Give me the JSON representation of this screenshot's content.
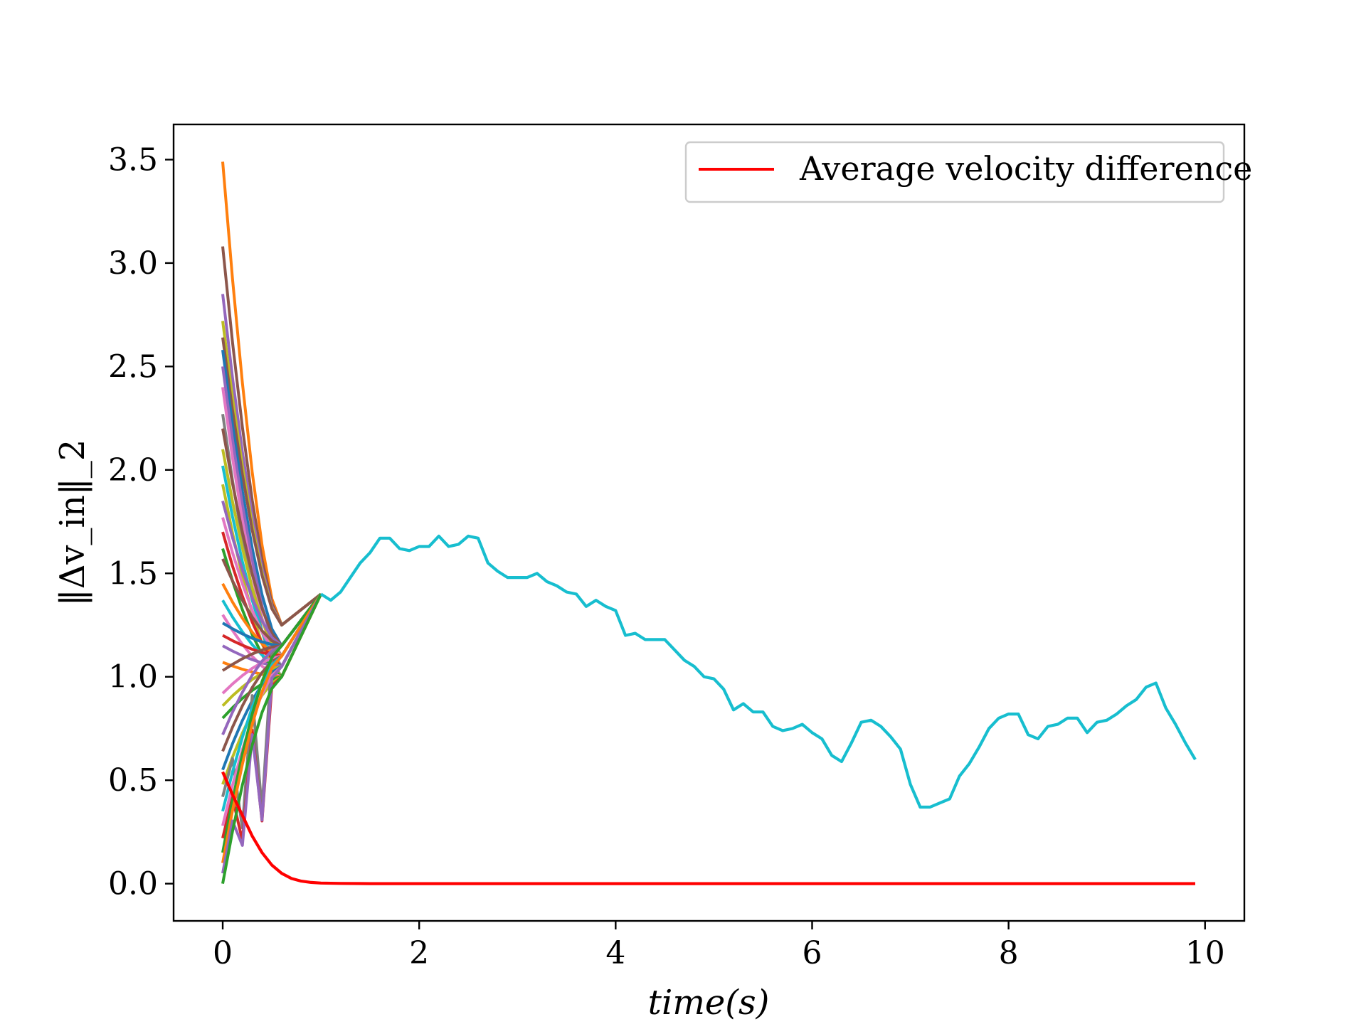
{
  "chart_data": {
    "type": "line",
    "title": "",
    "xlabel": "time(s)",
    "ylabel": "‖Δv_in‖_2",
    "xlim": [
      -0.5,
      10.4
    ],
    "ylim": [
      -0.18,
      3.67
    ],
    "xticks": [
      0,
      2,
      4,
      6,
      8,
      10
    ],
    "yticks": [
      0.0,
      0.5,
      1.0,
      1.5,
      2.0,
      2.5,
      3.0,
      3.5
    ],
    "xtick_labels": [
      "0",
      "2",
      "4",
      "6",
      "8",
      "10"
    ],
    "ytick_labels": [
      "0.0",
      "0.5",
      "1.0",
      "1.5",
      "2.0",
      "2.5",
      "3.0",
      "3.5"
    ],
    "grid": false,
    "legend": {
      "position": "upper right",
      "entries": [
        "Average velocity difference"
      ]
    },
    "converged": {
      "color": "#17becf",
      "x": [
        1.0,
        1.1,
        1.2,
        1.3,
        1.4,
        1.5,
        1.6,
        1.7,
        1.8,
        1.9,
        2.0,
        2.1,
        2.2,
        2.3,
        2.4,
        2.5,
        2.6,
        2.7,
        2.8,
        2.9,
        3.0,
        3.1,
        3.2,
        3.3,
        3.4,
        3.5,
        3.6,
        3.7,
        3.8,
        3.9,
        4.0,
        4.1,
        4.2,
        4.3,
        4.4,
        4.5,
        4.6,
        4.7,
        4.8,
        4.9,
        5.0,
        5.1,
        5.2,
        5.3,
        5.4,
        5.5,
        5.6,
        5.7,
        5.8,
        5.9,
        6.0,
        6.1,
        6.2,
        6.3,
        6.4,
        6.5,
        6.6,
        6.7,
        6.8,
        6.9,
        7.0,
        7.1,
        7.2,
        7.3,
        7.4,
        7.5,
        7.6,
        7.7,
        7.8,
        7.9,
        8.0,
        8.1,
        8.2,
        8.3,
        8.4,
        8.5,
        8.6,
        8.7,
        8.8,
        8.9,
        9.0,
        9.1,
        9.2,
        9.3,
        9.4,
        9.5,
        9.6,
        9.7,
        9.8,
        9.9
      ],
      "y": [
        1.4,
        1.37,
        1.41,
        1.48,
        1.55,
        1.6,
        1.67,
        1.67,
        1.62,
        1.61,
        1.63,
        1.63,
        1.68,
        1.63,
        1.64,
        1.68,
        1.67,
        1.55,
        1.51,
        1.48,
        1.48,
        1.48,
        1.5,
        1.46,
        1.44,
        1.41,
        1.4,
        1.34,
        1.37,
        1.34,
        1.32,
        1.2,
        1.21,
        1.18,
        1.18,
        1.18,
        1.13,
        1.08,
        1.05,
        1.0,
        0.99,
        0.94,
        0.84,
        0.87,
        0.83,
        0.83,
        0.76,
        0.74,
        0.75,
        0.77,
        0.73,
        0.7,
        0.62,
        0.59,
        0.68,
        0.78,
        0.79,
        0.76,
        0.71,
        0.65,
        0.48,
        0.37,
        0.37,
        0.39,
        0.41,
        0.52,
        0.58,
        0.66,
        0.75,
        0.8,
        0.82,
        0.82,
        0.72,
        0.7,
        0.76,
        0.77,
        0.8,
        0.8,
        0.73,
        0.78,
        0.79,
        0.82,
        0.86,
        0.89,
        0.95,
        0.97,
        0.85,
        0.77,
        0.68,
        0.6
      ]
    },
    "agents": [
      {
        "color": "#ff7f0e",
        "start": 3.49
      },
      {
        "color": "#8c564b",
        "start": 3.08
      },
      {
        "color": "#9467bd",
        "start": 2.85
      },
      {
        "color": "#bcbd22",
        "start": 2.72
      },
      {
        "color": "#8c564b",
        "start": 2.64
      },
      {
        "color": "#1f77b4",
        "start": 2.58
      },
      {
        "color": "#9467bd",
        "start": 2.5
      },
      {
        "color": "#e377c2",
        "start": 2.4
      },
      {
        "color": "#7f7f7f",
        "start": 2.27
      },
      {
        "color": "#8c564b",
        "start": 2.2
      },
      {
        "color": "#bcbd22",
        "start": 2.1
      },
      {
        "color": "#17becf",
        "start": 2.02
      },
      {
        "color": "#bcbd22",
        "start": 1.93
      },
      {
        "color": "#9467bd",
        "start": 1.85
      },
      {
        "color": "#e377c2",
        "start": 1.77
      },
      {
        "color": "#d62728",
        "start": 1.7
      },
      {
        "color": "#2ca02c",
        "start": 1.62
      },
      {
        "color": "#8c564b",
        "start": 1.57
      },
      {
        "color": "#ff7f0e",
        "start": 1.45
      },
      {
        "color": "#17becf",
        "start": 1.37
      },
      {
        "color": "#e377c2",
        "start": 1.3
      },
      {
        "color": "#1f77b4",
        "start": 1.26
      },
      {
        "color": "#d62728",
        "start": 1.2
      },
      {
        "color": "#9467bd",
        "start": 1.15
      },
      {
        "color": "#ff7f0e",
        "start": 1.07
      },
      {
        "color": "#8c564b",
        "start": 1.03
      },
      {
        "color": "#e377c2",
        "start": 0.92
      },
      {
        "color": "#bcbd22",
        "start": 0.86
      },
      {
        "color": "#2ca02c",
        "start": 0.8
      },
      {
        "color": "#9467bd",
        "start": 0.72
      },
      {
        "color": "#8c564b",
        "start": 0.64
      },
      {
        "color": "#1f77b4",
        "start": 0.55
      },
      {
        "color": "#bcbd22",
        "start": 0.48
      },
      {
        "color": "#7f7f7f",
        "start": 0.42
      },
      {
        "color": "#17becf",
        "start": 0.35
      },
      {
        "color": "#e377c2",
        "start": 0.28
      },
      {
        "color": "#d62728",
        "start": 0.22
      },
      {
        "color": "#2ca02c",
        "start": 0.15
      },
      {
        "color": "#ff7f0e",
        "start": 0.1
      },
      {
        "color": "#9467bd",
        "start": 0.05
      },
      {
        "color": "#2ca02c",
        "start": 0.0
      }
    ],
    "series": [
      {
        "name": "Average velocity difference",
        "color": "#ff0000",
        "x": [
          0.0,
          0.1,
          0.2,
          0.3,
          0.4,
          0.5,
          0.6,
          0.7,
          0.8,
          0.9,
          1.0,
          1.2,
          1.5,
          2.0,
          3.0,
          4.0,
          5.0,
          6.0,
          7.0,
          8.0,
          9.0,
          9.9
        ],
        "y": [
          0.54,
          0.43,
          0.33,
          0.23,
          0.15,
          0.09,
          0.05,
          0.025,
          0.012,
          0.006,
          0.003,
          0.001,
          0.0,
          0.0,
          0.0,
          0.0,
          0.0,
          0.0,
          0.0,
          0.0,
          0.0,
          0.0
        ]
      }
    ]
  }
}
